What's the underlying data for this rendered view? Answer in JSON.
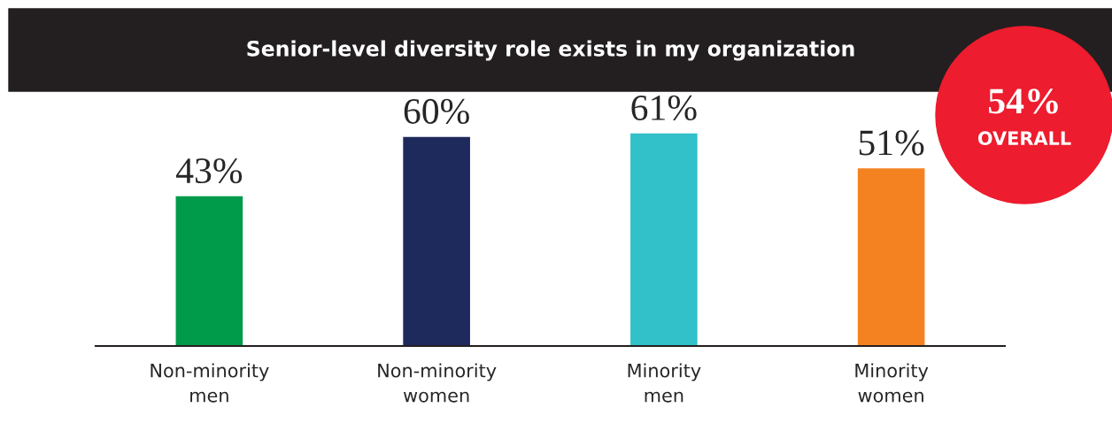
{
  "chart_data": {
    "type": "bar",
    "title": "Senior-level diversity role exists in my organization",
    "categories": [
      "Non-minority\nmen",
      "Non-minority\nwomen",
      "Minority\nmen",
      "Minority\nwomen"
    ],
    "values": [
      43,
      60,
      61,
      51
    ],
    "colors": [
      "#009a4b",
      "#1e2a5c",
      "#32c0c9",
      "#f58220"
    ],
    "value_labels": [
      "43%",
      "60%",
      "61%",
      "51%"
    ],
    "annotations": [
      "54%",
      "OVERALL"
    ],
    "grid": false,
    "legend": false
  }
}
